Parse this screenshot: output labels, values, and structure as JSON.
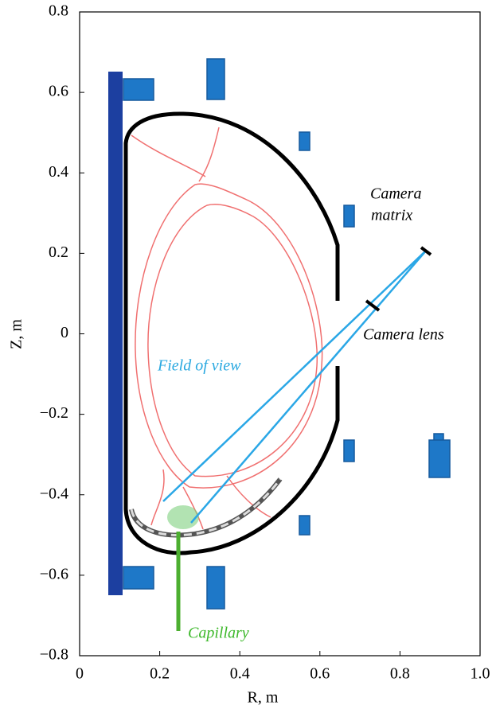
{
  "chart_data": {
    "type": "diagram",
    "xlabel": "R, m",
    "ylabel": "Z, m",
    "xlim": [
      0,
      1
    ],
    "ylim": [
      -0.8,
      0.8
    ],
    "xticks": [
      0,
      0.2,
      0.4,
      0.6,
      0.8,
      {
        "value": 1,
        "label": "1.0"
      }
    ],
    "yticks": [
      {
        "value": -0.8,
        "label": "−0.8"
      },
      {
        "value": -0.6,
        "label": "−0.6"
      },
      {
        "value": -0.4,
        "label": "−0.4"
      },
      {
        "value": -0.2,
        "label": "−0.2"
      },
      0,
      0.2,
      0.4,
      0.6,
      0.8
    ],
    "annotations": {
      "camera_matrix": [
        "Camera",
        "matrix"
      ],
      "camera_lens": "Camera lens",
      "field_of_view": "Field of view",
      "capillary": "Capillary"
    }
  }
}
